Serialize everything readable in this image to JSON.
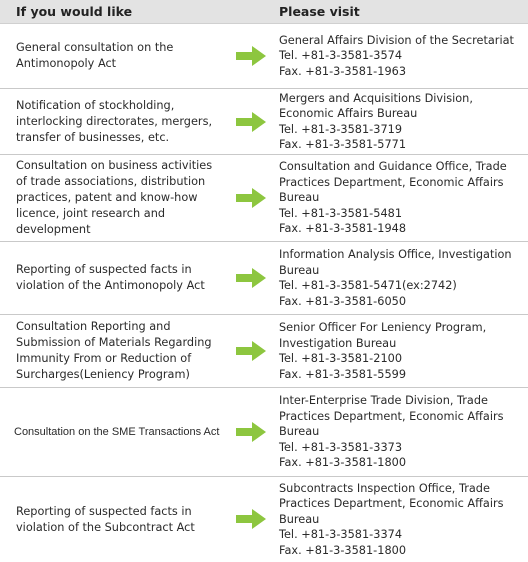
{
  "header": {
    "left": "If you would like",
    "right": "Please visit"
  },
  "colors": {
    "arrow": "#8dc63f",
    "header_bg": "#e3e3e3",
    "divider": "#c9c9c9"
  },
  "rows": [
    {
      "request": "General consultation on the Antimonopoly Act",
      "office": "General Affairs Division of the Secretariat",
      "tel": "Tel. +81-3-3581-3574",
      "fax": "Fax. +81-3-3581-1963"
    },
    {
      "request": "Notification of stockholding, interlocking directorates, mergers, transfer of businesses, etc.",
      "office": "Mergers and Acquisitions Division, Economic Affairs Bureau",
      "tel": "Tel. +81-3-3581-3719",
      "fax": "Fax. +81-3-3581-5771"
    },
    {
      "request": "Consultation on business activities of trade associations, distribution practices, patent and know-how licence, joint research and development",
      "office": "Consultation and Guidance Office, Trade Practices Department, Economic Affairs Bureau",
      "tel": "Tel. +81-3-3581-5481",
      "fax": "Fax. +81-3-3581-1948"
    },
    {
      "request": "Reporting of suspected facts in violation of the Antimonopoly Act",
      "office": "Information Analysis Office, Investigation Bureau",
      "tel": "Tel. +81-3-3581-5471(ex:2742)",
      "fax": "Fax. +81-3-3581-6050"
    },
    {
      "request": "Consultation Reporting and Submission of Materials Regarding Immunity From or Reduction of Surcharges(Leniency Program)",
      "office": "Senior Officer For Leniency Program, Investigation Bureau",
      "tel": "Tel. +81-3-3581-2100",
      "fax": "Fax. +81-3-3581-5599"
    },
    {
      "request": "Consultation on the SME Transactions Act",
      "office": "Inter-Enterprise Trade Division, Trade Practices Department, Economic Affairs Bureau",
      "tel": "Tel. +81-3-3581-3373",
      "fax": "Fax. +81-3-3581-1800"
    },
    {
      "request": "Reporting of suspected facts in violation of the Subcontract Act",
      "office": "Subcontracts Inspection Office, Trade Practices Department, Economic Affairs Bureau",
      "tel": "Tel. +81-3-3581-3374",
      "fax": "Fax. +81-3-3581-1800"
    }
  ]
}
